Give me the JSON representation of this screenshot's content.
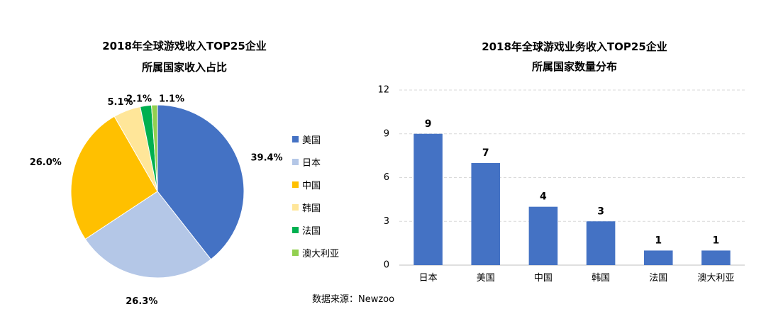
{
  "source_note": "数据来源：Newzoo",
  "chart_data": [
    {
      "type": "pie",
      "title_line1": "2018年全球游戏收入TOP25企业",
      "title_line2": "所属国家收入占比",
      "slices": [
        {
          "label": "美国",
          "value": 39.4,
          "display": "39.4%",
          "color": "#4472C4"
        },
        {
          "label": "日本",
          "value": 26.3,
          "display": "26.3%",
          "color": "#B4C7E7"
        },
        {
          "label": "中国",
          "value": 26.0,
          "display": "26.0%",
          "color": "#FFC000"
        },
        {
          "label": "韩国",
          "value": 5.1,
          "display": "5.1%",
          "color": "#FFE699"
        },
        {
          "label": "法国",
          "value": 2.1,
          "display": "2.1%",
          "color": "#00B050"
        },
        {
          "label": "澳大利亚",
          "value": 1.1,
          "display": "1.1%",
          "color": "#92D050"
        }
      ],
      "legend_placement": "right"
    },
    {
      "type": "bar",
      "title_line1": "2018年全球游戏业务收入TOP25企业",
      "title_line2": "所属国家数量分布",
      "categories": [
        "日本",
        "美国",
        "中国",
        "韩国",
        "法国",
        "澳大利亚"
      ],
      "values": [
        9,
        7,
        4,
        3,
        1,
        1
      ],
      "ylim": [
        0,
        12
      ],
      "yticks": [
        "0",
        "3",
        "6",
        "9",
        "12"
      ],
      "bar_color": "#4472C4",
      "grid": true
    }
  ]
}
